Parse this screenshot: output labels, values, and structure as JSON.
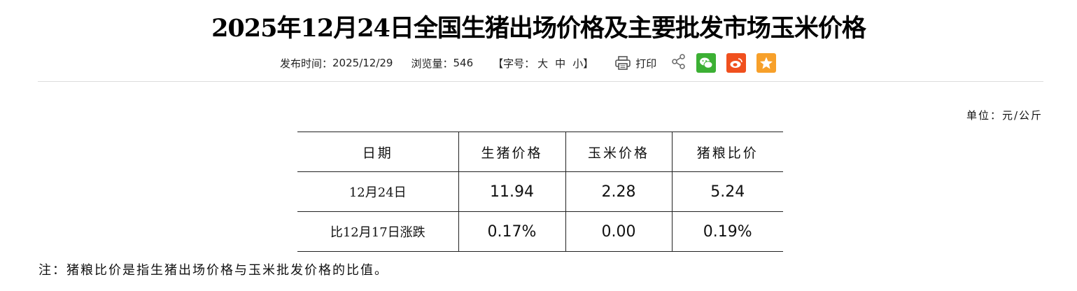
{
  "title": "2025年12月24日全国生猪出场价格及主要批发市场玉米价格",
  "meta": {
    "publish_label": "发布时间：",
    "publish_date": "2025/12/29",
    "views_label": "浏览量：",
    "views": "546",
    "font_open": "【字号：",
    "font_large": "大",
    "font_medium": "中",
    "font_small": "小",
    "font_close": "】",
    "print_label": "打印"
  },
  "share": {
    "icons": [
      "share-icon",
      "wechat-icon",
      "weibo-icon",
      "favorite-icon"
    ],
    "colors": {
      "wechat": "#3cb034",
      "weibo": "#f0501e",
      "favorite": "#f7a02a"
    }
  },
  "unit": "单位：元/公斤",
  "table": {
    "headers": [
      "日期",
      "生猪价格",
      "玉米价格",
      "猪粮比价"
    ],
    "rows": [
      [
        "12月24日",
        "11.94",
        "2.28",
        "5.24"
      ],
      [
        "比12月17日涨跌",
        "0.17%",
        "0.00",
        "0.19%"
      ]
    ]
  },
  "note": "注：猪粮比价是指生猪出场价格与玉米批发价格的比值。"
}
